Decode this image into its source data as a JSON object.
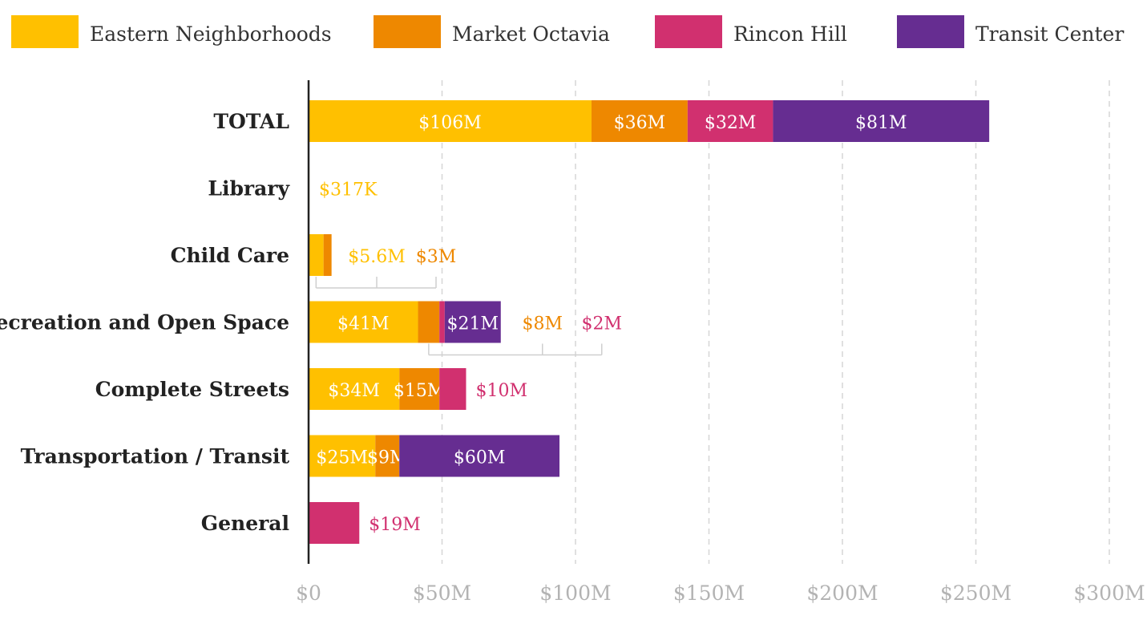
{
  "chart_data": {
    "type": "bar",
    "orientation": "horizontal",
    "stacked": true,
    "title": "",
    "xlabel": "",
    "ylabel": "",
    "xlim": [
      0,
      300
    ],
    "units": "$M",
    "grid": true,
    "legend_position": "top",
    "ticks": [
      {
        "value": 0,
        "label": "$0"
      },
      {
        "value": 50,
        "label": "$50M"
      },
      {
        "value": 100,
        "label": "$100M"
      },
      {
        "value": 150,
        "label": "$150M"
      },
      {
        "value": 200,
        "label": "$200M"
      },
      {
        "value": 250,
        "label": "$250M"
      },
      {
        "value": 300,
        "label": "$300M"
      }
    ],
    "categories": [
      "TOTAL",
      "Library",
      "Child Care",
      "Recreation and Open Space",
      "Complete Streets",
      "Transportation / Transit",
      "General"
    ],
    "series": [
      {
        "name": "Eastern Neighborhoods",
        "color": "#FFC000",
        "values": [
          106,
          0.317,
          5.6,
          41,
          34,
          25,
          0
        ],
        "labels": [
          "$106M",
          "$317K",
          "$5.6M",
          "$41M",
          "$34M",
          "$25M",
          ""
        ],
        "label_modes": [
          "in",
          "out",
          "callout",
          "in",
          "in",
          "in",
          ""
        ]
      },
      {
        "name": "Market Octavia",
        "color": "#EE8800",
        "values": [
          36,
          0,
          3,
          8,
          15,
          9,
          0
        ],
        "labels": [
          "$36M",
          "",
          "$3M",
          "$8M",
          "$15M",
          "$9M",
          ""
        ],
        "label_modes": [
          "in",
          "",
          "callout",
          "callout",
          "in",
          "in",
          ""
        ]
      },
      {
        "name": "Rincon Hill",
        "color": "#D1306F",
        "values": [
          32,
          0,
          0,
          2,
          10,
          0,
          19
        ],
        "labels": [
          "$32M",
          "",
          "",
          "$2M",
          "$10M",
          "",
          "$19M"
        ],
        "label_modes": [
          "in",
          "",
          "",
          "callout",
          "out",
          "",
          "out"
        ]
      },
      {
        "name": "Transit Center",
        "color": "#662D91",
        "values": [
          81,
          0,
          0,
          21,
          0,
          60,
          0
        ],
        "labels": [
          "$81M",
          "",
          "",
          "$21M",
          "",
          "$60M",
          ""
        ],
        "label_modes": [
          "in",
          "",
          "",
          "in",
          "",
          "in",
          ""
        ]
      }
    ]
  }
}
